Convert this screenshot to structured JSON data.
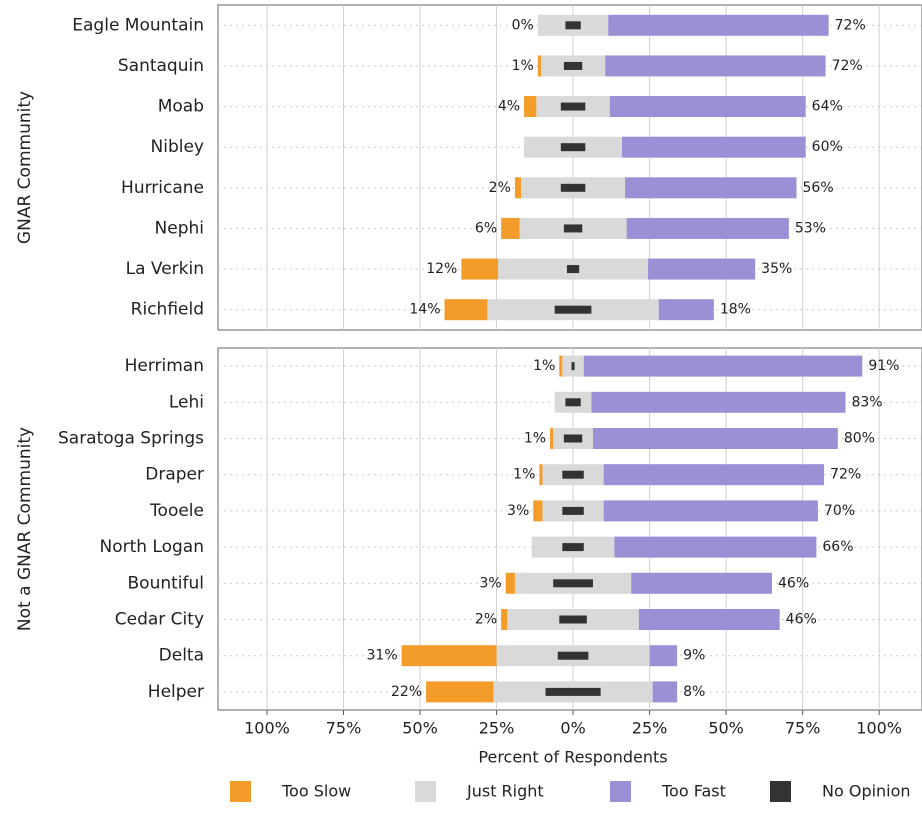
{
  "chart_data": {
    "type": "diverging_bar",
    "xlabel": "Percent of Respondents",
    "xlim": [
      -116,
      114
    ],
    "xticks": [
      {
        "value": -100,
        "label": "100%"
      },
      {
        "value": -75,
        "label": "75%"
      },
      {
        "value": -50,
        "label": "50%"
      },
      {
        "value": -25,
        "label": "25%"
      },
      {
        "value": 0,
        "label": "0%"
      },
      {
        "value": 25,
        "label": "25%"
      },
      {
        "value": 50,
        "label": "50%"
      },
      {
        "value": 75,
        "label": "75%"
      },
      {
        "value": 100,
        "label": "100%"
      }
    ],
    "grid": true,
    "legend": "bottom",
    "panels": [
      {
        "label": "GNAR Community",
        "categories": [
          "Eagle Mountain",
          "Santaquin",
          "Moab",
          "Nibley",
          "Hurricane",
          "Nephi",
          "La Verkin",
          "Richfield"
        ],
        "series": [
          {
            "name": "Too Slow",
            "color": "#f39c2a",
            "values": [
              0,
              1,
              4,
              null,
              2,
              6,
              12,
              14
            ],
            "value_labels": [
              "0%",
              "1%",
              "4%",
              null,
              "2%",
              "6%",
              "12%",
              "14%"
            ]
          },
          {
            "name": "Just Right",
            "color": "#d9d9d9",
            "values": [
              23,
              21,
              24,
              32,
              34,
              35,
              49,
              56
            ]
          },
          {
            "name": "Too Fast",
            "color": "#9b8fd6",
            "values": [
              72,
              72,
              64,
              60,
              56,
              53,
              35,
              18
            ],
            "value_labels": [
              "72%",
              "72%",
              "64%",
              "60%",
              "56%",
              "53%",
              "35%",
              "18%"
            ]
          },
          {
            "name": "No Opinion",
            "color": "#333333",
            "values": [
              5,
              6,
              8,
              8,
              8,
              6,
              4,
              12
            ]
          }
        ]
      },
      {
        "label": "Not a GNAR Community",
        "categories": [
          "Herriman",
          "Lehi",
          "Saratoga Springs",
          "Draper",
          "Tooele",
          "North Logan",
          "Bountiful",
          "Cedar City",
          "Delta",
          "Helper"
        ],
        "series": [
          {
            "name": "Too Slow",
            "color": "#f39c2a",
            "values": [
              1,
              null,
              1,
              1,
              3,
              null,
              3,
              2,
              31,
              22
            ],
            "value_labels": [
              "1%",
              null,
              "1%",
              "1%",
              "3%",
              null,
              "3%",
              "2%",
              "31%",
              "22%"
            ]
          },
          {
            "name": "Just Right",
            "color": "#d9d9d9",
            "values": [
              7,
              12,
              13,
              20,
              20,
              27,
              38,
              43,
              50,
              52
            ]
          },
          {
            "name": "Too Fast",
            "color": "#9b8fd6",
            "values": [
              91,
              83,
              80,
              72,
              70,
              66,
              46,
              46,
              9,
              8
            ],
            "value_labels": [
              "91%",
              "83%",
              "80%",
              "72%",
              "70%",
              "66%",
              "46%",
              "46%",
              "9%",
              "8%"
            ]
          },
          {
            "name": "No Opinion",
            "color": "#333333",
            "values": [
              1,
              5,
              6,
              7,
              7,
              7,
              13,
              9,
              10,
              18
            ]
          }
        ]
      }
    ]
  }
}
